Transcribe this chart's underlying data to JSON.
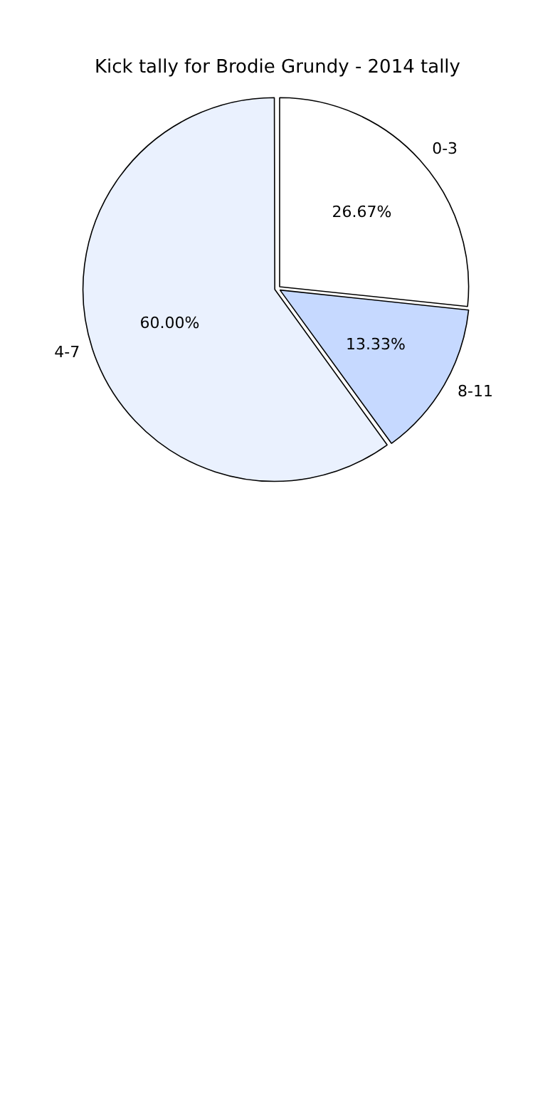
{
  "chart_data": {
    "type": "pie",
    "title": "Kick tally for Brodie Grundy - 2014 tally",
    "categories": [
      "0-3",
      "8-11",
      "4-7"
    ],
    "values": [
      26.67,
      13.33,
      60.0
    ],
    "value_labels": [
      "26.67%",
      "13.33%",
      "60.00%"
    ],
    "colors": [
      "#ffffff",
      "#c6d9ff",
      "#eaf1fe"
    ],
    "legend": false
  }
}
